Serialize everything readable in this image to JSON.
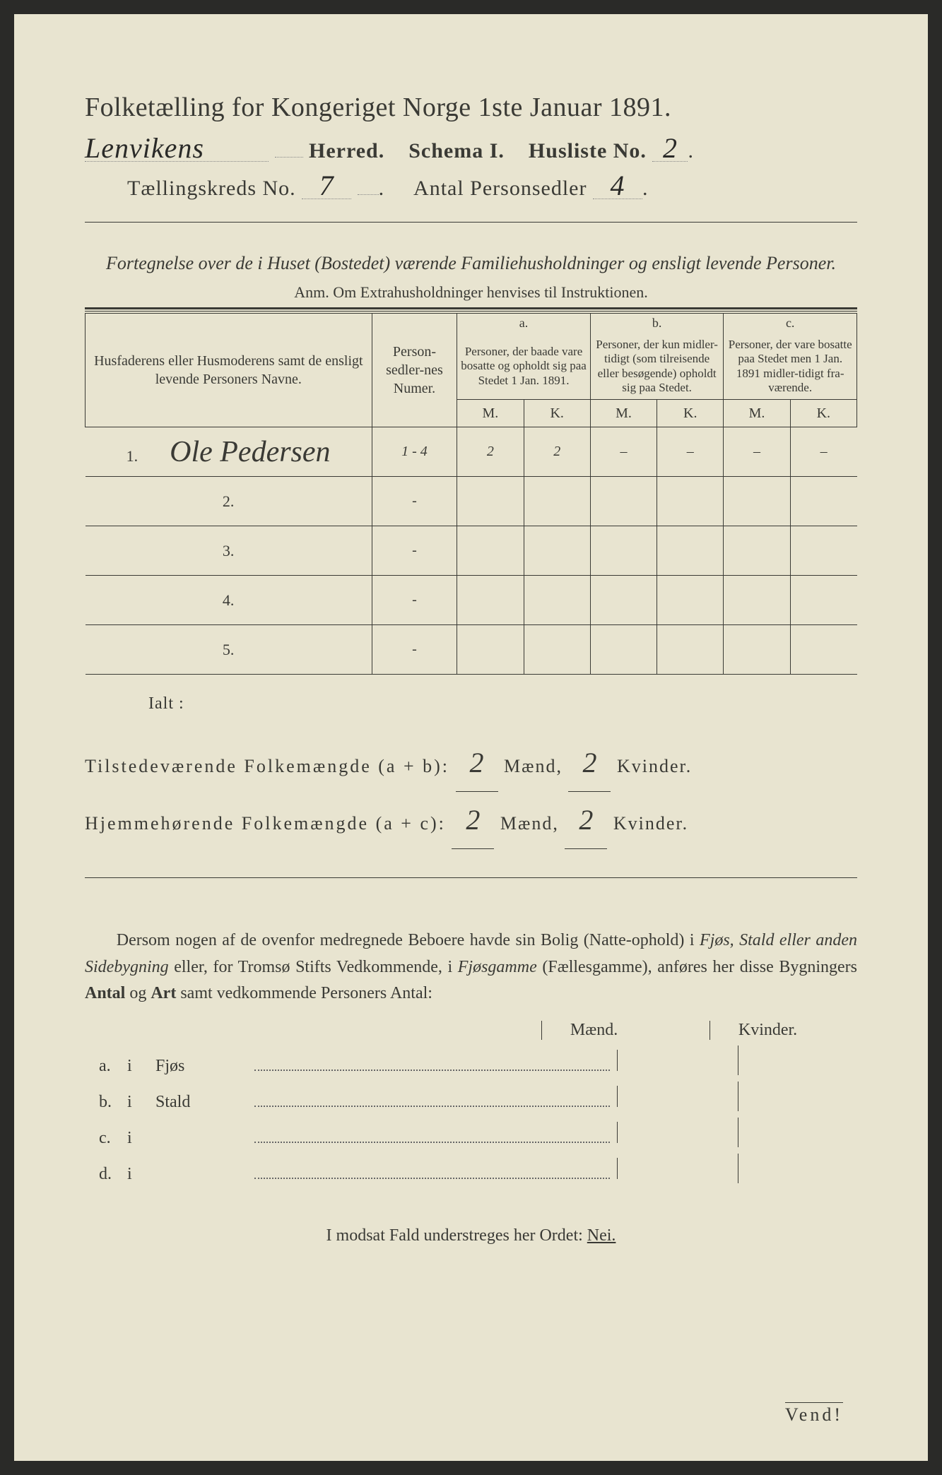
{
  "header": {
    "title": "Folketælling for Kongeriget Norge 1ste Januar 1891.",
    "herred_value": "Lenvikens",
    "herred_label": "Herred.",
    "schema_label": "Schema I.",
    "husliste_label": "Husliste No.",
    "husliste_value": "2",
    "kreds_label": "Tællingskreds No.",
    "kreds_value": "7",
    "personsedler_label": "Antal Personsedler",
    "personsedler_value": "4"
  },
  "subtitle": "Fortegnelse over de i Huset (Bostedet) værende Familiehusholdninger og ensligt levende Personer.",
  "anm": "Anm.  Om Extrahusholdninger henvises til Instruktionen.",
  "table": {
    "col1": "Husfaderens eller Husmoderens samt de ensligt levende Personers Navne.",
    "col2": "Person-sedler-nes Numer.",
    "col_a_top": "a.",
    "col_a": "Personer, der baade vare bosatte og opholdt sig paa Stedet 1 Jan. 1891.",
    "col_b_top": "b.",
    "col_b": "Personer, der kun midler-tidigt (som tilreisende eller besøgende) opholdt sig paa Stedet.",
    "col_c_top": "c.",
    "col_c": "Personer, der vare bosatte paa Stedet men 1 Jan. 1891 midler-tidigt fra-værende.",
    "M": "M.",
    "K": "K.",
    "rows": [
      {
        "n": "1.",
        "name": "Ole Pedersen",
        "num": "1 - 4",
        "aM": "2",
        "aK": "2",
        "bM": "–",
        "bK": "–",
        "cM": "–",
        "cK": "–"
      },
      {
        "n": "2.",
        "name": "",
        "num": "-",
        "aM": "",
        "aK": "",
        "bM": "",
        "bK": "",
        "cM": "",
        "cK": ""
      },
      {
        "n": "3.",
        "name": "",
        "num": "-",
        "aM": "",
        "aK": "",
        "bM": "",
        "bK": "",
        "cM": "",
        "cK": ""
      },
      {
        "n": "4.",
        "name": "",
        "num": "-",
        "aM": "",
        "aK": "",
        "bM": "",
        "bK": "",
        "cM": "",
        "cK": ""
      },
      {
        "n": "5.",
        "name": "",
        "num": "-",
        "aM": "",
        "aK": "",
        "bM": "",
        "bK": "",
        "cM": "",
        "cK": ""
      }
    ]
  },
  "ialt": "Ialt :",
  "totals": {
    "line1_label": "Tilstedeværende Folkemængde (a + b):",
    "line1_m": "2",
    "line1_k": "2",
    "line2_label": "Hjemmehørende Folkemængde (a + c):",
    "line2_m": "2",
    "line2_k": "2",
    "maend": "Mænd,",
    "kvinder": "Kvinder."
  },
  "para": "Dersom nogen af de ovenfor medregnede Beboere havde sin Bolig (Natte-ophold) i Fjøs, Stald eller anden Sidebygning eller, for Tromsø Stifts Vedkommende, i Fjøsgamme (Fællesgamme), anføres her disse Bygningers Antal og Art samt vedkommende Personers Antal:",
  "mk": {
    "m": "Mænd.",
    "k": "Kvinder."
  },
  "abcd": [
    {
      "label": "a.",
      "i": "i",
      "text": "Fjøs"
    },
    {
      "label": "b.",
      "i": "i",
      "text": "Stald"
    },
    {
      "label": "c.",
      "i": "i",
      "text": ""
    },
    {
      "label": "d.",
      "i": "i",
      "text": ""
    }
  ],
  "footer": "I modsat Fald understreges her Ordet:",
  "nei": "Nei.",
  "vend": "Vend!",
  "colors": {
    "paper": "#e8e4d0",
    "ink": "#3a3a35",
    "background": "#2a2a28"
  }
}
